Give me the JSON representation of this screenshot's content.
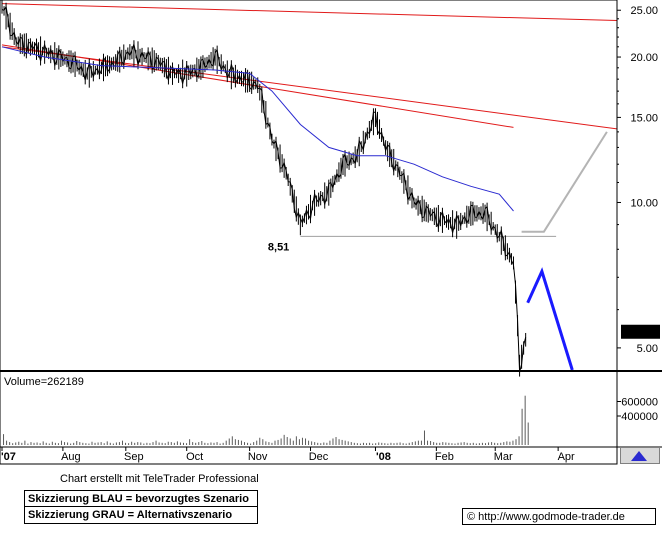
{
  "chart_data": [
    {
      "type": "candlestick",
      "scale": "log",
      "ylim": [
        4.5,
        26
      ],
      "y_ticks": [
        "25.00",
        "20.00",
        "15.00",
        "10.00",
        "5.00"
      ],
      "x_tick_labels": [
        "'07",
        "Aug",
        "Sep",
        "Oct",
        "Nov",
        "Dec",
        "'08",
        "Feb",
        "Mar",
        "Apr"
      ],
      "support_label": "8,51",
      "support_level": 8.51,
      "last_price_label": "5.40",
      "last_price": 5.4,
      "price": [
        [
          "2007-07-02",
          25.5
        ],
        [
          "2007-07-09",
          21.5
        ],
        [
          "2007-07-16",
          21.0
        ],
        [
          "2007-07-23",
          20.5
        ],
        [
          "2007-07-30",
          20.0
        ],
        [
          "2007-08-06",
          19.5
        ],
        [
          "2007-08-13",
          18.5
        ],
        [
          "2007-08-20",
          19.0
        ],
        [
          "2007-08-27",
          19.5
        ],
        [
          "2007-09-03",
          20.5
        ],
        [
          "2007-09-10",
          20.0
        ],
        [
          "2007-09-17",
          19.5
        ],
        [
          "2007-09-24",
          18.5
        ],
        [
          "2007-10-01",
          18.5
        ],
        [
          "2007-10-08",
          19.0
        ],
        [
          "2007-10-15",
          20.0
        ],
        [
          "2007-10-22",
          18.5
        ],
        [
          "2007-10-29",
          18.0
        ],
        [
          "2007-11-05",
          17.5
        ],
        [
          "2007-11-12",
          13.5
        ],
        [
          "2007-11-19",
          11.5
        ],
        [
          "2007-11-26",
          9.0
        ],
        [
          "2007-12-03",
          10.0
        ],
        [
          "2007-12-10",
          10.5
        ],
        [
          "2007-12-17",
          12.0
        ],
        [
          "2007-12-24",
          12.5
        ],
        [
          "2008-01-02",
          15.0
        ],
        [
          "2008-01-07",
          13.0
        ],
        [
          "2008-01-14",
          11.5
        ],
        [
          "2008-01-21",
          10.0
        ],
        [
          "2008-01-28",
          9.5
        ],
        [
          "2008-02-04",
          9.2
        ],
        [
          "2008-02-11",
          9.0
        ],
        [
          "2008-02-18",
          9.5
        ],
        [
          "2008-02-25",
          9.5
        ],
        [
          "2008-03-03",
          8.5
        ],
        [
          "2008-03-10",
          7.5
        ],
        [
          "2008-03-13",
          4.6
        ],
        [
          "2008-03-17",
          5.4
        ]
      ],
      "moving_average": [
        [
          "2007-07-02",
          21.0
        ],
        [
          "2007-07-23",
          20.0
        ],
        [
          "2007-08-20",
          19.2
        ],
        [
          "2007-09-17",
          19.0
        ],
        [
          "2007-10-15",
          18.8
        ],
        [
          "2007-11-01",
          18.5
        ],
        [
          "2007-11-12",
          17.0
        ],
        [
          "2007-11-26",
          14.5
        ],
        [
          "2007-12-10",
          13.0
        ],
        [
          "2007-12-24",
          12.5
        ],
        [
          "2008-01-07",
          12.5
        ],
        [
          "2008-01-21",
          12.0
        ],
        [
          "2008-02-04",
          11.3
        ],
        [
          "2008-02-18",
          10.8
        ],
        [
          "2008-03-03",
          10.4
        ],
        [
          "2008-03-10",
          9.6
        ]
      ],
      "red_trendlines": [
        [
          [
            "2007-07-02",
            25.8
          ],
          [
            "2008-04-30",
            23.8
          ]
        ],
        [
          [
            "2007-07-02",
            21.0
          ],
          [
            "2008-04-30",
            14.2
          ]
        ],
        [
          [
            "2007-07-02",
            21.2
          ],
          [
            "2008-03-10",
            14.3
          ]
        ]
      ],
      "support_line": [
        [
          "2007-11-26",
          8.51
        ],
        [
          "2008-03-31",
          8.51
        ]
      ],
      "blue_scenario": [
        [
          "2008-03-17",
          6.2
        ],
        [
          "2008-03-24",
          7.2
        ],
        [
          "2008-04-08",
          4.5
        ]
      ],
      "grey_scenario": [
        [
          "2008-03-14",
          8.7
        ],
        [
          "2008-03-25",
          8.7
        ],
        [
          "2008-04-25",
          14.0
        ]
      ],
      "scenario_colors": {
        "blue": "#1a1aff",
        "grey": "#b4b4b4"
      }
    },
    {
      "type": "bar",
      "title": "Volume=262189",
      "y_ticks": [
        "600000",
        "400000"
      ],
      "ylim": [
        0,
        800000
      ],
      "values": [
        150000,
        60000,
        40000,
        25000,
        35000,
        45000,
        30000,
        60000,
        20000,
        40000,
        30000,
        35000,
        25000,
        50000,
        30000,
        20000,
        45000,
        30000,
        25000,
        60000,
        40000,
        35000,
        20000,
        30000,
        55000,
        40000,
        30000,
        25000,
        20000,
        45000,
        30000,
        35000,
        40000,
        25000,
        50000,
        30000,
        20000,
        35000,
        40000,
        60000,
        30000,
        25000,
        45000,
        30000,
        40000,
        35000,
        20000,
        30000,
        25000,
        40000,
        60000,
        35000,
        30000,
        25000,
        45000,
        40000,
        30000,
        50000,
        35000,
        30000,
        25000,
        80000,
        40000,
        30000,
        40000,
        55000,
        30000,
        25000,
        35000,
        30000,
        40000,
        20000,
        30000,
        60000,
        90000,
        120000,
        80000,
        70000,
        60000,
        40000,
        30000,
        20000,
        40000,
        60000,
        100000,
        80000,
        50000,
        40000,
        30000,
        60000,
        70000,
        90000,
        140000,
        110000,
        90000,
        60000,
        120000,
        80000,
        100000,
        90000,
        60000,
        50000,
        40000,
        30000,
        25000,
        35000,
        30000,
        60000,
        90000,
        110000,
        80000,
        70000,
        60000,
        50000,
        40000,
        30000,
        25000,
        20000,
        30000,
        25000,
        30000,
        20000,
        25000,
        35000,
        30000,
        25000,
        20000,
        30000,
        25000,
        30000,
        35000,
        25000,
        20000,
        30000,
        40000,
        50000,
        60000,
        60000,
        200000,
        60000,
        55000,
        40000,
        30000,
        30000,
        40000,
        35000,
        30000,
        25000,
        20000,
        30000,
        35000,
        40000,
        30000,
        25000,
        30000,
        20000,
        25000,
        30000,
        25000,
        35000,
        40000,
        30000,
        25000,
        30000,
        40000,
        50000,
        45000,
        60000,
        80000,
        120000,
        500000,
        680000,
        310000
      ],
      "bar_color": "#5a5a5a"
    }
  ],
  "footer": {
    "credit": "Chart erstellt mit TeleTrader Professional",
    "note_blue": "Skizzierung BLAU = bevorzugtes Szenario",
    "note_grey": "Skizzierung GRAU = Alternativszenario",
    "copyright": "© http://www.godmode-trader.de"
  },
  "colors": {
    "candle": "#000000",
    "ma": "#2a2ad0",
    "trend": "#e11a1a",
    "support": "#a0a0a0",
    "axis": "#000000"
  }
}
